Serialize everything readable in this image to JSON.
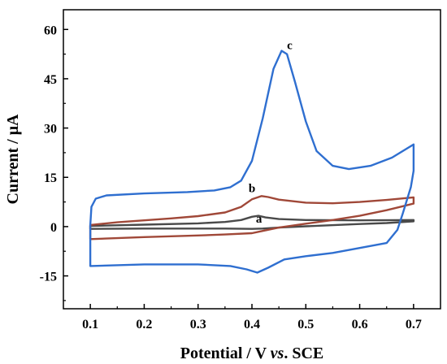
{
  "chart_data": {
    "type": "line",
    "title": "",
    "xlabel": {
      "prefix": "Potential / V ",
      "italic": "vs",
      "suffix": ". SCE"
    },
    "ylabel": "Current / μA",
    "xlim": [
      0.05,
      0.75
    ],
    "ylim": [
      -25,
      66
    ],
    "x_ticks": [
      0.1,
      0.2,
      0.3,
      0.4,
      0.5,
      0.6,
      0.7
    ],
    "x_tick_labels": [
      "0.1",
      "0.2",
      "0.3",
      "0.4",
      "0.5",
      "0.6",
      "0.7"
    ],
    "y_ticks": [
      -15,
      0,
      15,
      30,
      45,
      60
    ],
    "y_tick_labels": [
      "-15",
      "0",
      "15",
      "30",
      "45",
      "60"
    ],
    "grid": false,
    "legend": "none",
    "series": [
      {
        "name": "a",
        "color": "#4a4a4a",
        "label_at": [
          0.413,
          1.2
        ],
        "points": [
          [
            0.1,
            0.2
          ],
          [
            0.2,
            0.6
          ],
          [
            0.3,
            1.0
          ],
          [
            0.35,
            1.4
          ],
          [
            0.38,
            2.0
          ],
          [
            0.4,
            3.0
          ],
          [
            0.412,
            3.3
          ],
          [
            0.425,
            2.8
          ],
          [
            0.45,
            2.3
          ],
          [
            0.5,
            2.0
          ],
          [
            0.6,
            1.9
          ],
          [
            0.7,
            2.0
          ],
          [
            0.7,
            1.6
          ],
          [
            0.65,
            1.1
          ],
          [
            0.6,
            0.8
          ],
          [
            0.5,
            0.1
          ],
          [
            0.45,
            -0.3
          ],
          [
            0.42,
            -0.6
          ],
          [
            0.4,
            -0.7
          ],
          [
            0.35,
            -0.6
          ],
          [
            0.3,
            -0.6
          ],
          [
            0.2,
            -0.6
          ],
          [
            0.1,
            -0.7
          ]
        ]
      },
      {
        "name": "b",
        "color": "#a04838",
        "label_at": [
          0.4,
          10.5
        ],
        "points": [
          [
            0.1,
            0.5
          ],
          [
            0.15,
            1.3
          ],
          [
            0.2,
            1.9
          ],
          [
            0.25,
            2.5
          ],
          [
            0.3,
            3.2
          ],
          [
            0.35,
            4.3
          ],
          [
            0.38,
            6.0
          ],
          [
            0.4,
            8.3
          ],
          [
            0.418,
            9.3
          ],
          [
            0.43,
            9.0
          ],
          [
            0.45,
            8.2
          ],
          [
            0.5,
            7.3
          ],
          [
            0.55,
            7.1
          ],
          [
            0.6,
            7.5
          ],
          [
            0.65,
            8.1
          ],
          [
            0.7,
            8.9
          ],
          [
            0.7,
            7.0
          ],
          [
            0.65,
            5.0
          ],
          [
            0.6,
            3.3
          ],
          [
            0.55,
            2.0
          ],
          [
            0.5,
            0.9
          ],
          [
            0.45,
            -0.3
          ],
          [
            0.42,
            -1.3
          ],
          [
            0.4,
            -2.0
          ],
          [
            0.35,
            -2.4
          ],
          [
            0.3,
            -2.7
          ],
          [
            0.2,
            -3.2
          ],
          [
            0.1,
            -3.8
          ]
        ]
      },
      {
        "name": "c",
        "color": "#2f6fd0",
        "label_at": [
          0.47,
          54
        ],
        "points": [
          [
            0.1,
            0.5
          ],
          [
            0.102,
            6.0
          ],
          [
            0.11,
            8.5
          ],
          [
            0.13,
            9.5
          ],
          [
            0.2,
            10.1
          ],
          [
            0.28,
            10.5
          ],
          [
            0.33,
            11.0
          ],
          [
            0.36,
            12.0
          ],
          [
            0.38,
            14.0
          ],
          [
            0.4,
            20.0
          ],
          [
            0.42,
            33.0
          ],
          [
            0.44,
            48.0
          ],
          [
            0.455,
            53.5
          ],
          [
            0.465,
            52.5
          ],
          [
            0.48,
            44.0
          ],
          [
            0.5,
            32.0
          ],
          [
            0.52,
            23.0
          ],
          [
            0.55,
            18.5
          ],
          [
            0.58,
            17.5
          ],
          [
            0.62,
            18.5
          ],
          [
            0.66,
            21.0
          ],
          [
            0.7,
            25.0
          ],
          [
            0.7,
            17.0
          ],
          [
            0.695,
            12.0
          ],
          [
            0.68,
            4.0
          ],
          [
            0.67,
            -1.0
          ],
          [
            0.65,
            -5.0
          ],
          [
            0.6,
            -6.5
          ],
          [
            0.55,
            -8.0
          ],
          [
            0.5,
            -9.0
          ],
          [
            0.46,
            -10.0
          ],
          [
            0.43,
            -12.5
          ],
          [
            0.41,
            -14.0
          ],
          [
            0.39,
            -13.0
          ],
          [
            0.36,
            -12.0
          ],
          [
            0.3,
            -11.5
          ],
          [
            0.2,
            -11.5
          ],
          [
            0.1,
            -12.0
          ]
        ]
      }
    ]
  }
}
